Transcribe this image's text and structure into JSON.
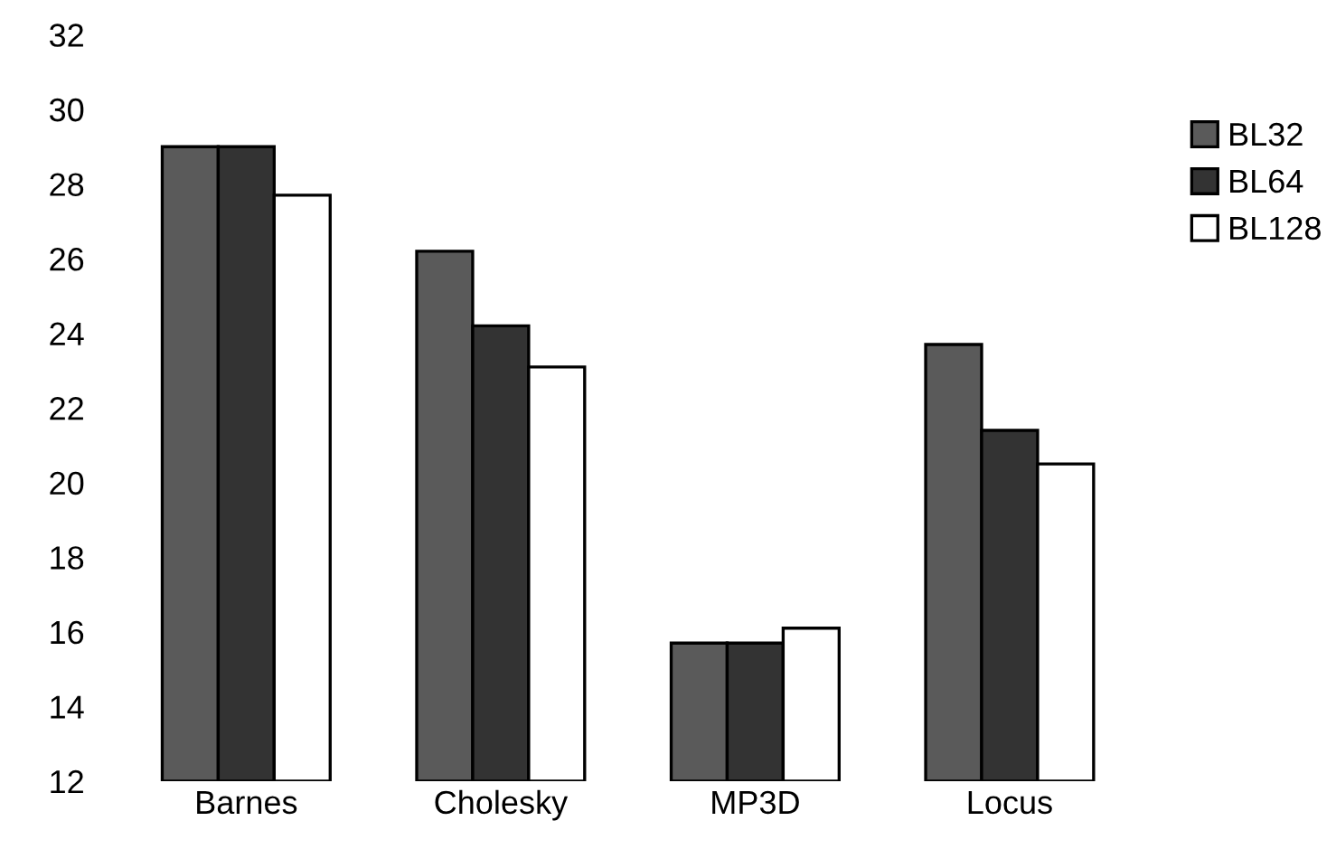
{
  "chart_data": {
    "type": "bar",
    "categories": [
      "Barnes",
      "Cholesky",
      "MP3D",
      "Locus"
    ],
    "series": [
      {
        "name": "BL32",
        "color": "#5a5a5a",
        "values": [
          29.0,
          26.2,
          15.7,
          23.7
        ]
      },
      {
        "name": "BL64",
        "color": "#333333",
        "values": [
          29.0,
          24.2,
          15.7,
          21.4
        ]
      },
      {
        "name": "BL128",
        "color": "#ffffff",
        "values": [
          27.7,
          23.1,
          16.1,
          20.5
        ]
      }
    ],
    "ylim": [
      12,
      32
    ],
    "yticks": [
      12,
      14,
      16,
      18,
      20,
      22,
      24,
      26,
      28,
      30,
      32
    ],
    "grid": false,
    "legend": "right"
  }
}
